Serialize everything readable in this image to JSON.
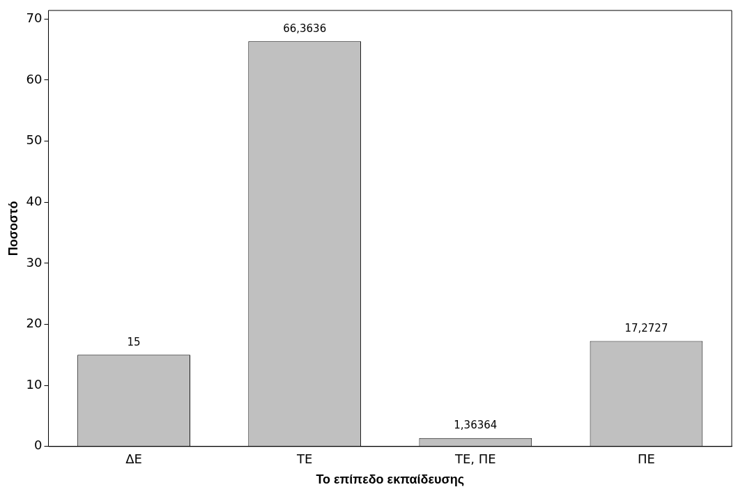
{
  "chart_data": {
    "type": "bar",
    "xlabel": "Το επίπεδο εκπαίδευσης",
    "ylabel": "Ποσοστό",
    "categories": [
      "ΔΕ",
      "ΤΕ",
      "ΤΕ, ΠΕ",
      "ΠΕ"
    ],
    "values": [
      15,
      66.3636,
      1.36364,
      17.2727
    ],
    "value_labels": [
      "15",
      "66,3636",
      "1,36364",
      "17,2727"
    ],
    "color": "#c0c0c0",
    "ylim": [
      0,
      71.4
    ],
    "yticks": [
      0,
      10,
      20,
      30,
      40,
      50,
      60,
      70
    ],
    "grid": false,
    "legend": false
  }
}
